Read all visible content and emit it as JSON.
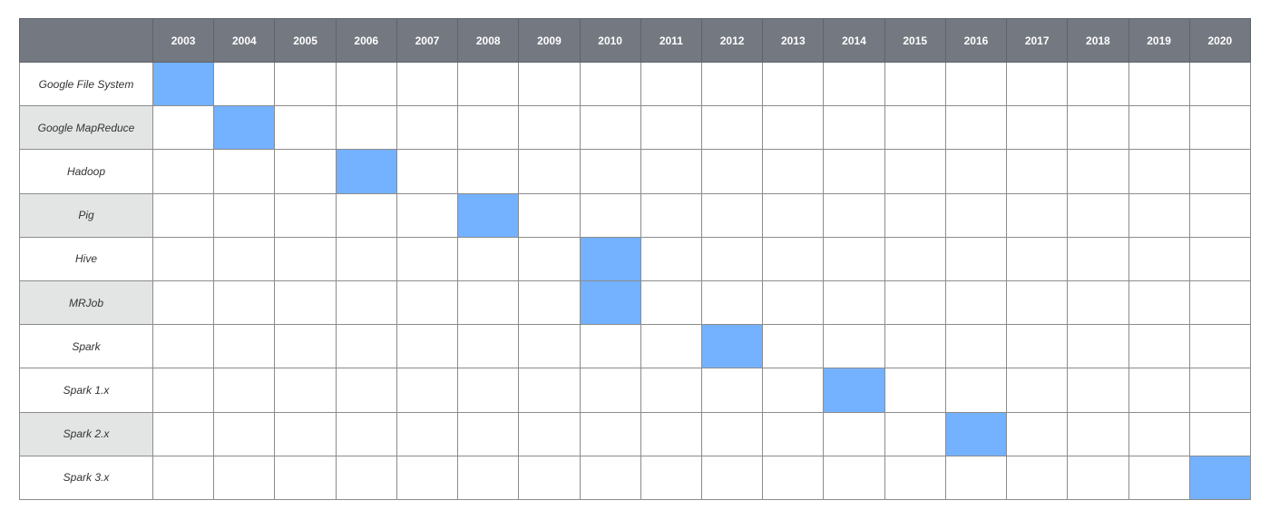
{
  "chart_data": {
    "type": "table",
    "title": "",
    "years": [
      "2003",
      "2004",
      "2005",
      "2006",
      "2007",
      "2008",
      "2009",
      "2010",
      "2011",
      "2012",
      "2013",
      "2014",
      "2015",
      "2016",
      "2017",
      "2018",
      "2019",
      "2020"
    ],
    "rows": [
      {
        "label": "Google File System",
        "year": "2003",
        "shaded_label": false
      },
      {
        "label": "Google MapReduce",
        "year": "2004",
        "shaded_label": true
      },
      {
        "label": "Hadoop",
        "year": "2006",
        "shaded_label": false
      },
      {
        "label": "Pig",
        "year": "2008",
        "shaded_label": true
      },
      {
        "label": "Hive",
        "year": "2010",
        "shaded_label": false
      },
      {
        "label": "MRJob",
        "year": "2010",
        "shaded_label": true
      },
      {
        "label": "Spark",
        "year": "2012",
        "shaded_label": false
      },
      {
        "label": "Spark 1.x",
        "year": "2014",
        "shaded_label": false
      },
      {
        "label": "Spark 2.x",
        "year": "2016",
        "shaded_label": true
      },
      {
        "label": "Spark 3.x",
        "year": "2020",
        "shaded_label": false
      }
    ],
    "colors": {
      "header_bg": "#747981",
      "header_text": "#ffffff",
      "highlight": "#74b1fe",
      "label_shade": "#e3e5e4",
      "grid": "#8c8c8c"
    }
  }
}
